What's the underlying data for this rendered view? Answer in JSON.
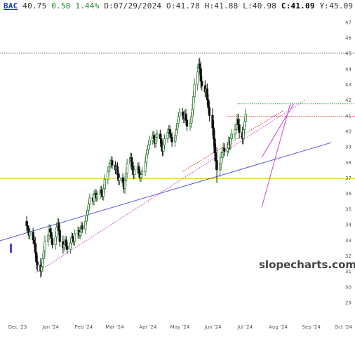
{
  "header": {
    "symbol": "BAC",
    "last": "40.75",
    "change": "0.58",
    "change_pct": "1.44%",
    "date_label": "D:",
    "date": "07/29/2024",
    "open_label": "O:",
    "open": "41.78",
    "high_label": "H:",
    "high": "41.88",
    "low_label": "L:",
    "low": "40.98",
    "close_label": "C:",
    "close": "41.09",
    "y_label": "Y:",
    "y": "45.09"
  },
  "watermark": "slopecharts.com",
  "colors": {
    "up_candle": "#2e7d32",
    "down_candle": "#111111",
    "blue_trendline": "#5555dd",
    "magenta_trendline": "#cc44cc",
    "red_line": "#dd3333",
    "green_line": "#33bb33",
    "orange_line": "#e8c000",
    "dotted_line": "#444444"
  },
  "chart_data": {
    "type": "candlestick",
    "symbol": "BAC",
    "x_ticks": [
      "Dec '23",
      "Jan '24",
      "Feb '24",
      "Mar '24",
      "Apr '24",
      "May '24",
      "Jun '24",
      "Jul '24",
      "Aug '24",
      "Sep '24",
      "Oct '24"
    ],
    "y_ticks": [
      29,
      30,
      31,
      32,
      33,
      34,
      35,
      36,
      37,
      38,
      39,
      40,
      41,
      42,
      43,
      44,
      45,
      46,
      47
    ],
    "ylim": [
      28.3,
      47.6
    ],
    "xlim": [
      "2023-12-01",
      "2024-10-06"
    ],
    "start_date": "2023-12-26",
    "closes": [
      33.9,
      33.7,
      33.3,
      33.5,
      33.0,
      32.8,
      32.2,
      31.6,
      31.4,
      31.0,
      31.3,
      31.8,
      32.3,
      32.9,
      33.3,
      33.7,
      33.5,
      33.1,
      32.7,
      33.2,
      33.8,
      34.1,
      33.6,
      32.9,
      32.5,
      32.7,
      33.0,
      32.6,
      32.4,
      32.8,
      33.2,
      33.1,
      32.9,
      33.4,
      33.6,
      33.3,
      33.5,
      33.9,
      33.7,
      34.2,
      34.6,
      34.9,
      35.3,
      35.7,
      35.5,
      35.9,
      36.0,
      35.7,
      35.9,
      36.2,
      36.0,
      35.8,
      36.3,
      36.9,
      37.4,
      37.7,
      37.9,
      38.1,
      37.8,
      37.5,
      37.7,
      37.2,
      36.8,
      37.0,
      36.7,
      36.3,
      36.8,
      37.3,
      37.9,
      38.3,
      38.0,
      37.5,
      37.2,
      37.5,
      37.7,
      37.3,
      37.0,
      37.2,
      37.4,
      38.0,
      38.5,
      38.8,
      39.1,
      39.4,
      39.7,
      39.5,
      39.2,
      39.6,
      39.8,
      39.5,
      39.0,
      38.7,
      39.1,
      39.5,
      39.9,
      40.1,
      39.8,
      39.6,
      39.3,
      39.7,
      40.1,
      40.5,
      40.9,
      41.2,
      41.0,
      40.8,
      41.1,
      40.7,
      40.3,
      40.5,
      40.9,
      41.4,
      42.2,
      43.0,
      43.8,
      44.3,
      44.0,
      43.2,
      42.9,
      42.5,
      42.7,
      42.0,
      41.5,
      41.0,
      40.2,
      39.5,
      38.6,
      38.1,
      37.5,
      37.9,
      38.3,
      38.6,
      38.9,
      38.7,
      38.9,
      39.3,
      39.1,
      39.5,
      39.8,
      40.1,
      40.4,
      40.75,
      40.4,
      39.9,
      39.5,
      40.1,
      40.6,
      41.09
    ],
    "ranges": [
      1.0,
      0.7,
      0.7,
      0.8,
      0.8,
      0.8,
      1.1,
      1.4,
      1.2,
      1.2,
      0.9,
      1.0,
      0.9,
      1.1,
      0.9,
      0.9,
      0.8,
      0.8,
      0.7,
      0.9,
      0.9,
      0.8,
      0.8,
      1.0,
      1.1,
      0.7,
      0.8,
      0.7,
      0.8,
      0.8,
      0.8,
      0.7,
      0.7,
      0.8,
      0.8,
      0.7,
      0.7,
      0.8,
      0.7,
      0.9,
      0.8,
      0.8,
      0.8,
      0.8,
      0.8,
      0.8,
      0.8,
      0.7,
      0.7,
      0.8,
      0.7,
      0.7,
      0.8,
      0.9,
      0.9,
      0.8,
      0.8,
      0.8,
      0.7,
      0.8,
      0.7,
      0.8,
      0.8,
      0.8,
      0.8,
      0.8,
      1.0,
      0.9,
      0.9,
      0.9,
      0.8,
      0.9,
      0.8,
      0.8,
      0.8,
      0.8,
      0.7,
      0.8,
      0.8,
      0.9,
      0.9,
      0.8,
      0.8,
      0.8,
      0.8,
      0.8,
      0.8,
      0.8,
      0.8,
      0.8,
      0.9,
      0.9,
      0.9,
      0.8,
      0.8,
      0.8,
      0.8,
      0.8,
      0.9,
      0.9,
      0.8,
      0.8,
      0.8,
      0.8,
      0.8,
      0.8,
      0.8,
      0.9,
      0.9,
      0.8,
      0.9,
      1.1,
      1.1,
      1.1,
      1.1,
      1.0,
      1.1,
      1.3,
      0.9,
      1.0,
      0.8,
      1.0,
      1.0,
      1.1,
      1.3,
      1.4,
      1.6,
      1.7,
      2.4,
      1.3,
      1.1,
      1.0,
      1.0,
      0.9,
      0.9,
      1.0,
      0.9,
      0.9,
      0.9,
      0.9,
      0.9,
      1.0,
      1.0,
      1.1,
      1.0,
      1.0,
      0.9,
      0.9
    ],
    "horizontal_lines": [
      {
        "y": 45.0,
        "color_key": "dotted_line",
        "style": "dotted",
        "x_from": "2023-12-01"
      },
      {
        "y": 41.75,
        "color_key": "green_line",
        "style": "dotted",
        "x_from": "2024-07-10"
      },
      {
        "y": 40.95,
        "color_key": "red_line",
        "style": "dotted",
        "x_from": "2024-07-01"
      },
      {
        "y": 36.95,
        "color_key": "orange_line",
        "style": "solid",
        "x_from": "2023-12-01"
      }
    ],
    "trendlines": [
      {
        "color_key": "blue_trendline",
        "style": "solid",
        "from": [
          "2023-12-01",
          32.95
        ],
        "to": [
          "2024-10-06",
          39.25
        ]
      },
      {
        "color_key": "magenta_trendline",
        "style": "dotted",
        "from": [
          "2024-01-04",
          30.9
        ],
        "to": [
          "2024-09-12",
          42.0
        ]
      },
      {
        "color_key": "red_line",
        "style": "dotted",
        "from": [
          "2024-05-20",
          37.4
        ],
        "to": [
          "2024-08-22",
          41.3
        ]
      },
      {
        "color_key": "magenta_trendline",
        "style": "solid",
        "from": [
          "2024-08-02",
          35.1
        ],
        "to": [
          "2024-08-29",
          41.8
        ]
      },
      {
        "color_key": "magenta_trendline",
        "style": "solid",
        "from": [
          "2024-08-02",
          38.3
        ],
        "to": [
          "2024-09-01",
          41.75
        ]
      }
    ]
  }
}
